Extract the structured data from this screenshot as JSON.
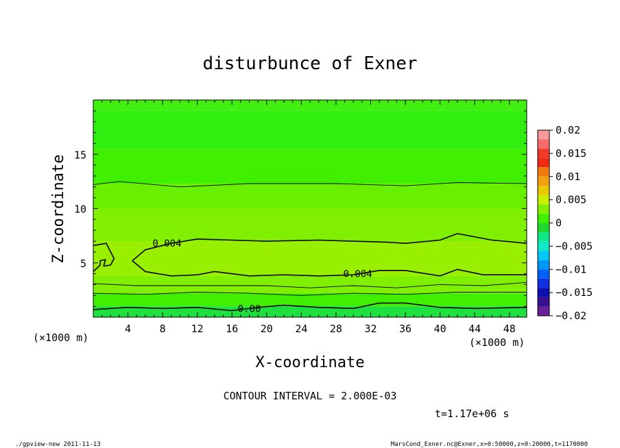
{
  "chart_data": {
    "type": "heatmap",
    "title": "disturbunce of Exner",
    "xlabel": "X-coordinate",
    "ylabel": "Z-coordinate",
    "x_unit": "(×1000 m)",
    "z_unit": "(×1000 m)",
    "xlim": [
      0,
      50
    ],
    "ylim": [
      0,
      20
    ],
    "x_ticks": [
      4,
      8,
      12,
      16,
      20,
      24,
      28,
      32,
      36,
      40,
      44,
      48
    ],
    "y_ticks": [
      5,
      10,
      15
    ],
    "colorbar": {
      "ticks": [
        "0.02",
        "0.015",
        "0.01",
        "0.005",
        "0",
        "−0.005",
        "−0.01",
        "−0.015",
        "−0.02"
      ],
      "levels": [
        {
          "lo": 0.018,
          "hi": 0.02,
          "color": "#f89a9a"
        },
        {
          "lo": 0.016,
          "hi": 0.018,
          "color": "#f66a6a"
        },
        {
          "lo": 0.014,
          "hi": 0.016,
          "color": "#f03a2a"
        },
        {
          "lo": 0.012,
          "hi": 0.014,
          "color": "#f02a10"
        },
        {
          "lo": 0.01,
          "hi": 0.012,
          "color": "#f07a10"
        },
        {
          "lo": 0.008,
          "hi": 0.01,
          "color": "#f0a010"
        },
        {
          "lo": 0.006,
          "hi": 0.008,
          "color": "#e8c800"
        },
        {
          "lo": 0.004,
          "hi": 0.006,
          "color": "#c8f000"
        },
        {
          "lo": 0.002,
          "hi": 0.004,
          "color": "#80f000"
        },
        {
          "lo": 0.0,
          "hi": 0.002,
          "color": "#40f000"
        },
        {
          "lo": -0.002,
          "hi": 0.0,
          "color": "#20d830"
        },
        {
          "lo": -0.004,
          "hi": -0.002,
          "color": "#10e888"
        },
        {
          "lo": -0.006,
          "hi": -0.004,
          "color": "#10e8c8"
        },
        {
          "lo": -0.008,
          "hi": -0.006,
          "color": "#00c8f8"
        },
        {
          "lo": -0.01,
          "hi": -0.008,
          "color": "#0098f8"
        },
        {
          "lo": -0.012,
          "hi": -0.01,
          "color": "#0060f8"
        },
        {
          "lo": -0.014,
          "hi": -0.012,
          "color": "#1030e0"
        },
        {
          "lo": -0.016,
          "hi": -0.014,
          "color": "#1010b0"
        },
        {
          "lo": -0.018,
          "hi": -0.016,
          "color": "#3a1090"
        },
        {
          "lo": -0.02,
          "hi": -0.018,
          "color": "#6a2098"
        }
      ]
    },
    "bands": [
      {
        "z0": 19.0,
        "z1": 20.0,
        "color": "#40ee10"
      },
      {
        "z0": 15.5,
        "z1": 19.0,
        "color": "#30ee10"
      },
      {
        "z0": 12.3,
        "z1": 15.5,
        "color": "#40f000"
      },
      {
        "z0": 10.0,
        "z1": 12.3,
        "color": "#68f000"
      },
      {
        "z0": 7.0,
        "z1": 10.0,
        "color": "#80f000"
      },
      {
        "z0": 3.8,
        "z1": 7.0,
        "color": "#98f000"
      },
      {
        "z0": 2.2,
        "z1": 3.8,
        "color": "#80f000"
      },
      {
        "z0": 1.0,
        "z1": 2.2,
        "color": "#40f000"
      },
      {
        "z0": 0.0,
        "z1": 1.0,
        "color": "#20e040"
      }
    ],
    "contours": [
      {
        "level": "0.004",
        "label": "0.004",
        "label_at": [
          8.5,
          6.8
        ],
        "bold": true,
        "points": [
          [
            4.5,
            5.2
          ],
          [
            6,
            6.2
          ],
          [
            9,
            6.8
          ],
          [
            12,
            7.2
          ],
          [
            16,
            7.1
          ],
          [
            20,
            7.0
          ],
          [
            26,
            7.1
          ],
          [
            30,
            7.0
          ],
          [
            34,
            6.9
          ],
          [
            36,
            6.8
          ],
          [
            40,
            7.1
          ],
          [
            42,
            7.7
          ],
          [
            46,
            7.1
          ],
          [
            50,
            6.8
          ]
        ]
      },
      {
        "level": "0.004",
        "label": "0.004",
        "label_at": [
          30.5,
          4.0
        ],
        "bold": true,
        "points": [
          [
            4.5,
            5.2
          ],
          [
            6,
            4.2
          ],
          [
            9,
            3.8
          ],
          [
            12,
            3.9
          ],
          [
            14,
            4.2
          ],
          [
            18,
            3.8
          ],
          [
            22,
            3.9
          ],
          [
            26,
            3.8
          ],
          [
            30,
            3.9
          ],
          [
            33,
            4.3
          ],
          [
            36,
            4.3
          ],
          [
            40,
            3.8
          ],
          [
            42,
            4.4
          ],
          [
            45,
            3.9
          ],
          [
            50,
            3.9
          ]
        ]
      },
      {
        "level": "0.004",
        "label": "",
        "label_at": null,
        "bold": true,
        "points": [
          [
            0,
            6.6
          ],
          [
            1.5,
            6.8
          ],
          [
            2,
            6.0
          ],
          [
            2.4,
            5.4
          ],
          [
            2,
            4.8
          ],
          [
            1.2,
            4.7
          ],
          [
            1.4,
            5.3
          ],
          [
            0.8,
            5.2
          ],
          [
            0.8,
            4.8
          ],
          [
            0,
            4.2
          ]
        ]
      },
      {
        "level": "0.002",
        "label": "",
        "label_at": null,
        "bold": false,
        "points": [
          [
            0,
            12.2
          ],
          [
            3,
            12.5
          ],
          [
            10,
            12.0
          ],
          [
            18,
            12.3
          ],
          [
            28,
            12.3
          ],
          [
            36,
            12.1
          ],
          [
            42,
            12.4
          ],
          [
            50,
            12.3
          ]
        ]
      },
      {
        "level": "0.002",
        "label": "",
        "label_at": null,
        "bold": false,
        "points": [
          [
            0,
            3.1
          ],
          [
            5,
            2.9
          ],
          [
            10,
            2.9
          ],
          [
            15,
            2.9
          ],
          [
            20,
            2.9
          ],
          [
            25,
            2.7
          ],
          [
            30,
            2.9
          ],
          [
            35,
            2.7
          ],
          [
            40,
            3.0
          ],
          [
            45,
            2.9
          ],
          [
            50,
            3.2
          ]
        ]
      },
      {
        "level": "0.002",
        "label": "",
        "label_at": null,
        "bold": false,
        "points": [
          [
            0,
            2.2
          ],
          [
            6,
            2.1
          ],
          [
            12,
            2.3
          ],
          [
            18,
            2.2
          ],
          [
            24,
            2.0
          ],
          [
            30,
            2.2
          ],
          [
            36,
            2.1
          ],
          [
            42,
            2.3
          ],
          [
            50,
            2.3
          ]
        ]
      },
      {
        "level": "0.000",
        "label": "0.00",
        "label_at": [
          18,
          0.8
        ],
        "bold": true,
        "points": [
          [
            0,
            0.7
          ],
          [
            4,
            0.9
          ],
          [
            8,
            0.8
          ],
          [
            12,
            0.9
          ],
          [
            16,
            0.6
          ],
          [
            19,
            0.9
          ],
          [
            22,
            1.1
          ],
          [
            26,
            0.9
          ],
          [
            30,
            0.8
          ],
          [
            33,
            1.3
          ],
          [
            36,
            1.3
          ],
          [
            40,
            0.9
          ],
          [
            44,
            0.8
          ],
          [
            50,
            0.9
          ]
        ]
      }
    ]
  },
  "footer": {
    "contour_interval": "CONTOUR INTERVAL = 2.000E-03",
    "time": "t=1.17e+06 s",
    "left_note": "./gpview-new   2011-11-13",
    "right_note": "MarsCond_Exner.nc@Exner,x=0:50000,z=0:20000,t=1170000"
  }
}
